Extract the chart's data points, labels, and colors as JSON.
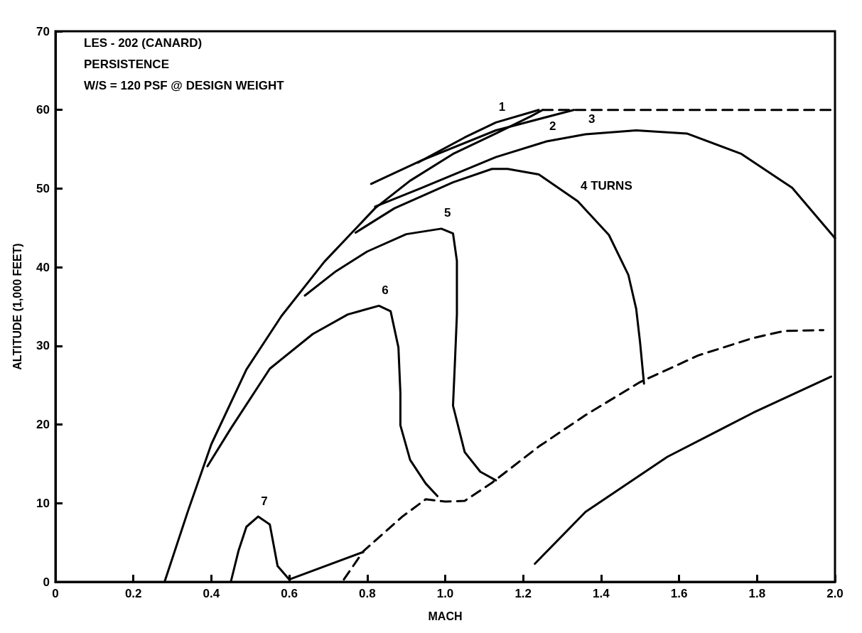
{
  "chart_data": {
    "type": "line",
    "xlabel": "MACH",
    "ylabel": "ALTITUDE (1,000 FEET)",
    "xlim": [
      0,
      2
    ],
    "xticks": [
      0,
      0.2,
      0.4,
      0.6,
      0.8,
      {
        "value": 1,
        "label": "1.0"
      },
      1.2,
      1.4,
      1.6,
      1.8,
      {
        "value": 2,
        "label": "2.0"
      }
    ],
    "ylim": [
      0,
      70
    ],
    "yticks": [
      0,
      10,
      20,
      30,
      40,
      50,
      60,
      70
    ],
    "grid": false,
    "marker": "none",
    "series": [
      {
        "color": "#000000",
        "line_style": "solid",
        "x": [
          0.28,
          0.34,
          0.4,
          0.49,
          0.58,
          0.69,
          0.82,
          0.91,
          1.02,
          1.13,
          1.22,
          1.25
        ],
        "values": [
          0,
          9,
          17.5,
          27,
          33.8,
          40.7,
          47.5,
          51,
          54.4,
          57,
          59.2,
          60
        ]
      },
      {
        "color": "#000000",
        "line_style": "dashed",
        "x": [
          1.25,
          2.0
        ],
        "values": [
          60,
          60
        ]
      },
      {
        "color": "#000000",
        "line_style": "solid",
        "x": [
          0.93,
          1.05,
          1.13,
          1.24
        ],
        "values": [
          53.3,
          56.5,
          58.4,
          60
        ]
      },
      {
        "color": "#000000",
        "line_style": "solid",
        "x": [
          0.81,
          0.94,
          1.13,
          1.33
        ],
        "values": [
          50.6,
          53.6,
          57.4,
          60
        ]
      },
      {
        "color": "#000000",
        "line_style": "solid",
        "x": [
          0.82,
          0.94,
          1.13,
          1.26,
          1.36,
          1.49,
          1.62,
          1.76,
          1.89,
          2.0
        ],
        "values": [
          47.7,
          50.1,
          54,
          56,
          56.9,
          57.4,
          57,
          54.4,
          50.1,
          43.7
        ]
      },
      {
        "color": "#000000",
        "line_style": "solid",
        "x": [
          0.77,
          0.87,
          1.02,
          1.12,
          1.16,
          1.24,
          1.34,
          1.42,
          1.47,
          1.49,
          1.5,
          1.51
        ],
        "values": [
          44.4,
          47.5,
          50.8,
          52.5,
          52.5,
          51.8,
          48.4,
          44.1,
          39,
          34.7,
          30.4,
          25.2
        ]
      },
      {
        "color": "#000000",
        "line_style": "solid",
        "x": [
          0.64,
          0.72,
          0.8,
          0.9,
          0.99,
          1.02,
          1.03,
          1.03,
          1.025,
          1.02,
          1.05,
          1.09,
          1.13
        ],
        "values": [
          36.4,
          39.5,
          42,
          44.2,
          44.9,
          44.3,
          40.8,
          34,
          28,
          22.4,
          16.5,
          14,
          12.9
        ]
      },
      {
        "color": "#000000",
        "line_style": "solid",
        "x": [
          0.39,
          0.45,
          0.55,
          0.66,
          0.75,
          0.83,
          0.86,
          0.88,
          0.885,
          0.885,
          0.91,
          0.95,
          0.98
        ],
        "values": [
          14.7,
          19.5,
          27.1,
          31.5,
          34,
          35.1,
          34.4,
          29.8,
          24,
          19.9,
          15.5,
          12.5,
          10.9
        ]
      },
      {
        "color": "#000000",
        "line_style": "solid",
        "x": [
          0.45,
          0.47,
          0.49,
          0.52,
          0.55,
          0.57,
          0.6,
          0.79
        ],
        "values": [
          0,
          4,
          7,
          8.3,
          7.3,
          2,
          0.3,
          3.8
        ]
      },
      {
        "color": "#000000",
        "line_style": "dashed",
        "x": [
          0.74,
          0.79,
          0.89,
          0.95,
          1.0,
          1.05,
          1.12,
          1.24,
          1.36,
          1.5,
          1.65,
          1.79,
          1.87,
          1.97
        ],
        "values": [
          0.3,
          3.9,
          8.3,
          10.5,
          10.2,
          10.3,
          12.6,
          17.2,
          21.2,
          25.4,
          28.8,
          31,
          31.9,
          32
        ]
      },
      {
        "color": "#000000",
        "line_style": "solid",
        "x": [
          1.23,
          1.36,
          1.57,
          1.79,
          1.99
        ],
        "values": [
          2.3,
          8.9,
          15.9,
          21.5,
          26.1
        ]
      }
    ],
    "annotations": [
      "LES - 202 (CANARD)",
      "PERSISTENCE",
      "W/S = 120 PSF @ DESIGN WEIGHT",
      {
        "text": "1",
        "x": 1.13,
        "y": 58.4
      },
      {
        "text": "2",
        "x": 1.26,
        "y": 56
      },
      {
        "text": "3",
        "x": 1.36,
        "y": 56.9
      },
      {
        "text": "4 TURNS",
        "x": 1.34,
        "y": 48.4
      },
      {
        "text": "5",
        "x": 0.99,
        "y": 44.9
      },
      {
        "text": "6",
        "x": 0.83,
        "y": 35.1
      },
      {
        "text": "7",
        "x": 0.52,
        "y": 8.3
      }
    ]
  }
}
